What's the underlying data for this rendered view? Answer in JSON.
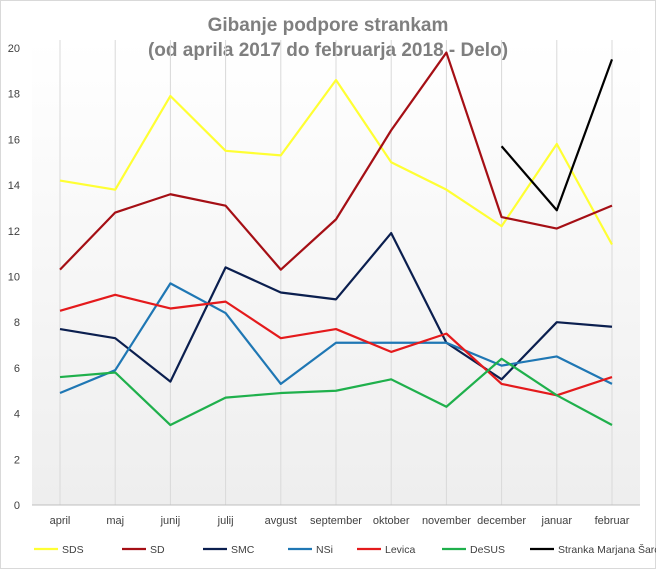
{
  "chart_data": {
    "type": "line",
    "title": [
      "Gibanje  podpore  strankam",
      "(od aprila  2017 do  februarja  2018 - Delo)"
    ],
    "xlabel": "",
    "ylabel": "",
    "ylim": [
      0,
      20
    ],
    "yticks": [
      0,
      2,
      4,
      6,
      8,
      10,
      12,
      14,
      16,
      18,
      20
    ],
    "grid": "vertical",
    "legend": "bottom",
    "categories": [
      "april",
      "maj",
      "junij",
      "julij",
      "avgust",
      "september",
      "oktober",
      "november",
      "december",
      "januar",
      "februar"
    ],
    "series": [
      {
        "name": "SDS",
        "color": "#ffff33",
        "values": [
          14.2,
          13.8,
          17.9,
          15.5,
          15.3,
          18.6,
          15.0,
          13.8,
          12.2,
          15.8,
          11.4
        ]
      },
      {
        "name": "SD",
        "color": "#a50f15",
        "values": [
          10.3,
          12.8,
          13.6,
          13.1,
          10.3,
          12.5,
          16.4,
          19.8,
          12.6,
          12.1,
          13.1
        ]
      },
      {
        "name": "SMC",
        "color": "#0b1f4f",
        "values": [
          7.7,
          7.3,
          5.4,
          10.4,
          9.3,
          9.0,
          11.9,
          7.1,
          5.5,
          8.0,
          7.8
        ]
      },
      {
        "name": "NSi",
        "color": "#1f77b4",
        "values": [
          4.9,
          5.9,
          9.7,
          8.4,
          5.3,
          7.1,
          7.1,
          7.1,
          6.1,
          6.5,
          5.3
        ]
      },
      {
        "name": "Levica",
        "color": "#e41a1c",
        "values": [
          8.5,
          9.2,
          8.6,
          8.9,
          7.3,
          7.7,
          6.7,
          7.5,
          5.3,
          4.8,
          5.6
        ]
      },
      {
        "name": "DeSUS",
        "color": "#1fb04c",
        "values": [
          5.6,
          5.8,
          3.5,
          4.7,
          4.9,
          5.0,
          5.5,
          4.3,
          6.4,
          4.8,
          3.5
        ]
      },
      {
        "name": "Stranka Marjana Šarca",
        "color": "#000000",
        "values": [
          null,
          null,
          null,
          null,
          null,
          null,
          null,
          null,
          15.7,
          12.9,
          19.5
        ]
      }
    ]
  }
}
